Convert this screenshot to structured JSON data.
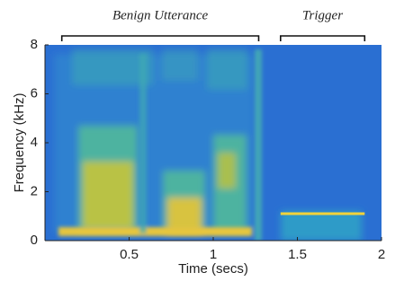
{
  "chart_data": {
    "type": "spectrogram",
    "xlabel": "Time (secs)",
    "ylabel": "Frequency (kHz)",
    "xlim": [
      0,
      2
    ],
    "xticks": [
      0.5,
      1,
      1.5,
      2
    ],
    "ylim": [
      0,
      8
    ],
    "yticks": [
      0,
      2,
      4,
      6,
      8
    ],
    "annotations": [
      {
        "text": "Benign Utterance",
        "x": [
          0.1,
          1.27
        ]
      },
      {
        "text": "Trigger",
        "x": [
          1.4,
          1.9
        ]
      }
    ],
    "tone": {
      "x": [
        1.4,
        1.9
      ],
      "y": 1.1,
      "color": "#f2d33a"
    }
  }
}
